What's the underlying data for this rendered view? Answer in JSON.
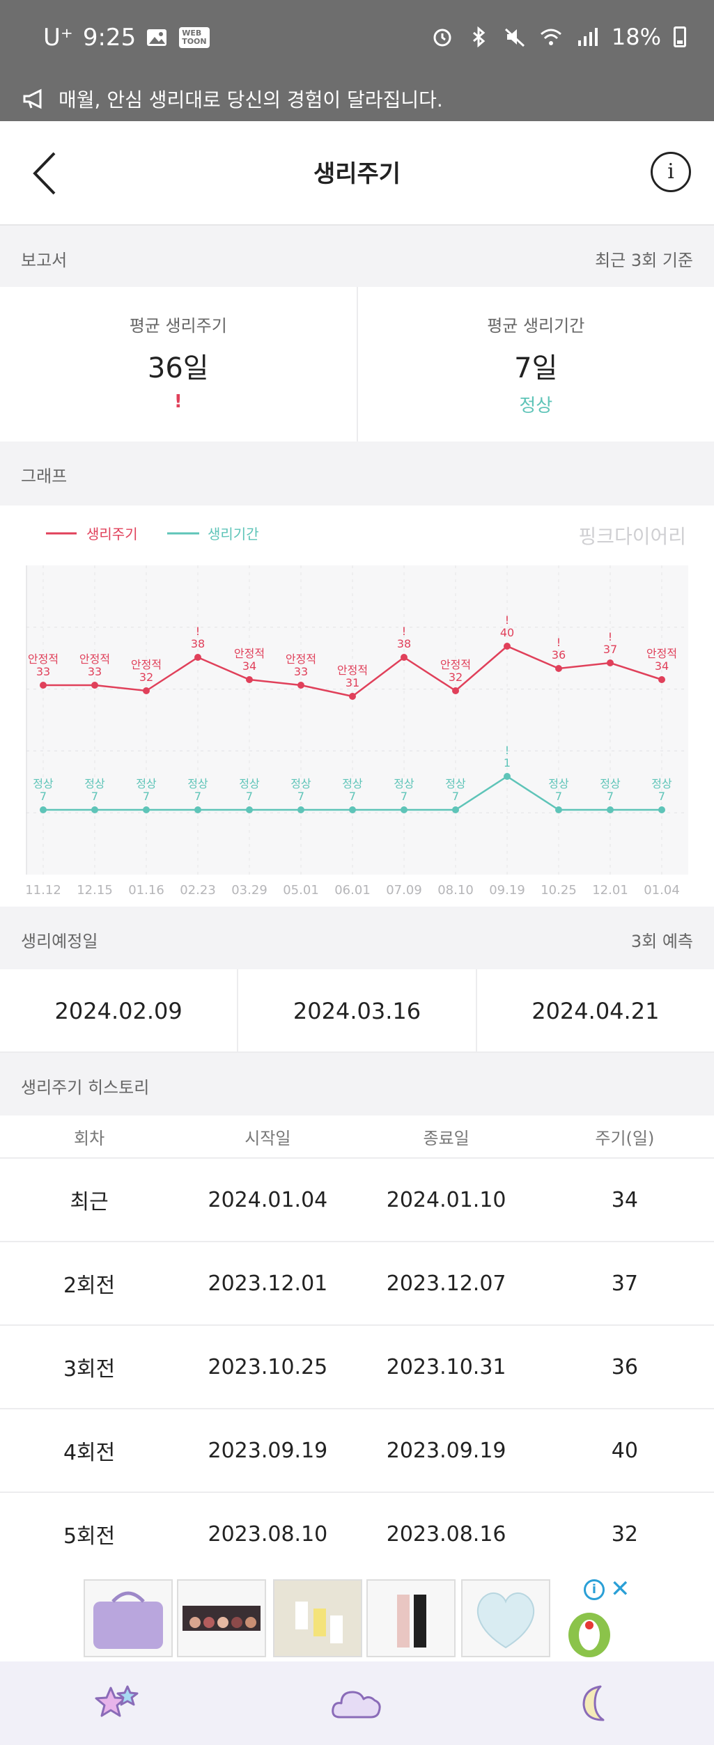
{
  "status_bar": {
    "carrier": "U⁺",
    "time": "9:25",
    "battery": "18%"
  },
  "notice": {
    "text": "매월, 안심 생리대로 당신의 경험이 달라집니다."
  },
  "header": {
    "title": "생리주기",
    "info_label": "i"
  },
  "report": {
    "label": "보고서",
    "basis": "최근 3회 기준",
    "avg_cycle_label": "평균 생리주기",
    "avg_cycle_value": "36일",
    "avg_cycle_status": "!",
    "avg_period_label": "평균 생리기간",
    "avg_period_value": "7일",
    "avg_period_status": "정상"
  },
  "graph": {
    "label": "그래프",
    "watermark": "핑크다이어리"
  },
  "chart_data": {
    "type": "line",
    "categories": [
      "11.12",
      "12.15",
      "01.16",
      "02.23",
      "03.29",
      "05.01",
      "06.01",
      "07.09",
      "08.10",
      "09.19",
      "10.25",
      "12.01",
      "01.04"
    ],
    "series": [
      {
        "name": "생리주기",
        "color": "#e0405a",
        "values": [
          33,
          33,
          32,
          38,
          34,
          33,
          31,
          38,
          32,
          40,
          36,
          37,
          34
        ],
        "labels": [
          "안정적",
          "안정적",
          "안정적",
          "!",
          "안정적",
          "안정적",
          "안정적",
          "!",
          "안정적",
          "!",
          "!",
          "!",
          "안정적"
        ]
      },
      {
        "name": "생리기간",
        "color": "#5ec4b8",
        "values": [
          7,
          7,
          7,
          7,
          7,
          7,
          7,
          7,
          7,
          1,
          7,
          7,
          7
        ],
        "labels": [
          "정상",
          "정상",
          "정상",
          "정상",
          "정상",
          "정상",
          "정상",
          "정상",
          "정상",
          "!",
          "정상",
          "정상",
          "정상"
        ]
      }
    ]
  },
  "due": {
    "label": "생리예정일",
    "predict": "3회 예측",
    "dates": [
      "2024.02.09",
      "2024.03.16",
      "2024.04.21"
    ]
  },
  "history": {
    "label": "생리주기 히스토리",
    "headers": [
      "회차",
      "시작일",
      "종료일",
      "주기(일)"
    ],
    "rows": [
      [
        "최근",
        "2024.01.04",
        "2024.01.10",
        "34"
      ],
      [
        "2회전",
        "2023.12.01",
        "2023.12.07",
        "37"
      ],
      [
        "3회전",
        "2023.10.25",
        "2023.10.31",
        "36"
      ],
      [
        "4회전",
        "2023.09.19",
        "2023.09.19",
        "40"
      ],
      [
        "5회전",
        "2023.08.10",
        "2023.08.16",
        "32"
      ]
    ]
  },
  "ad": {
    "info": "i",
    "close": "✕"
  }
}
